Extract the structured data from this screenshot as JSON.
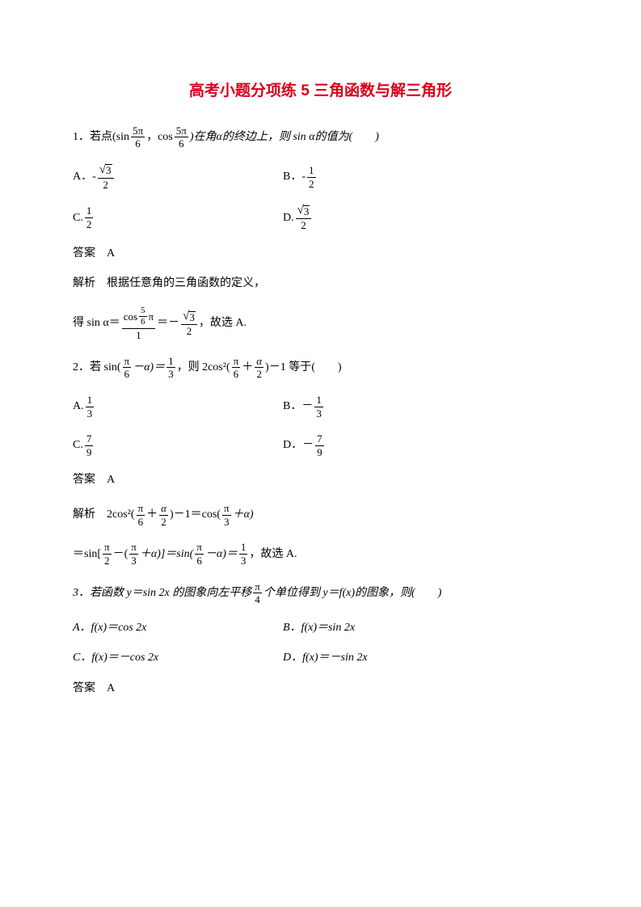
{
  "title_text": "高考小题分项练 5   三角函数与解三角形",
  "title_color": "#d9001b",
  "q1": {
    "stem_prefix": "1．若点(sin ",
    "frac1_num": "5π",
    "frac1_den": "6",
    "stem_mid": "，cos ",
    "frac2_num": "5π",
    "frac2_den": "6",
    "stem_suffix": ")在角α的终边上，则 sin α的值为(　　)",
    "optA_label": "A．-",
    "optA_num": "",
    "optA_den": "2",
    "optA_sqrt": "3",
    "optB_label": "B．-",
    "optB_num": "1",
    "optB_den": "2",
    "optC_label": "C.",
    "optC_num": "1",
    "optC_den": "2",
    "optD_label": "D.",
    "optD_sqrt": "3",
    "optD_den": "2",
    "answer": "答案　A",
    "expl1": "解析　根据任意角的三角函数的定义，",
    "expl2_prefix": "得 sin α＝",
    "expl2_top": "cos ",
    "expl2_top_fracnum": "5",
    "expl2_top_fracden": "6",
    "expl2_top_pi": "π",
    "expl2_bot": "1",
    "expl2_mid": "＝－",
    "expl2_sqrt": "3",
    "expl2_fracden": "2",
    "expl2_suffix": "，故选 A."
  },
  "q2": {
    "stem_prefix": "2．若 sin(",
    "frac1_num": "π",
    "frac1_den": "6",
    "stem_mid1": "－α)＝",
    "frac2_num": "1",
    "frac2_den": "3",
    "stem_mid2": "，则 2cos²(",
    "frac3_num": "π",
    "frac3_den": "6",
    "stem_plus": "＋",
    "frac4_num": "α",
    "frac4_den": "2",
    "stem_suffix": ")－1 等于(　　)",
    "optA_label": "A.",
    "optA_num": "1",
    "optA_den": "3",
    "optB_label": "B．－",
    "optB_num": "1",
    "optB_den": "3",
    "optC_label": "C.",
    "optC_num": "7",
    "optC_den": "9",
    "optD_label": "D．－",
    "optD_num": "7",
    "optD_den": "9",
    "answer": "答案　A",
    "expl1_prefix": "解析　2cos²(",
    "expl1_f1n": "π",
    "expl1_f1d": "6",
    "expl1_mid1": "＋",
    "expl1_f2n": "α",
    "expl1_f2d": "2",
    "expl1_mid2": ")－1＝cos(",
    "expl1_f3n": "π",
    "expl1_f3d": "3",
    "expl1_suffix": "＋α)",
    "expl2_prefix": "＝sin[",
    "expl2_f1n": "π",
    "expl2_f1d": "2",
    "expl2_mid1": "－(",
    "expl2_f2n": "π",
    "expl2_f2d": "3",
    "expl2_mid2": "＋α)]＝sin(",
    "expl2_f3n": "π",
    "expl2_f3d": "6",
    "expl2_mid3": "－α)＝",
    "expl2_f4n": "1",
    "expl2_f4d": "3",
    "expl2_suffix": "，故选 A."
  },
  "q3": {
    "stem_prefix": "3．若函数 y＝sin 2x 的图象向左平移",
    "frac_num": "π",
    "frac_den": "4",
    "stem_suffix": "个单位得到 y＝f(x)的图象，则(　　)",
    "optA": "A．f(x)＝cos 2x",
    "optB": "B．f(x)＝sin 2x",
    "optC": "C．f(x)＝－cos 2x",
    "optD": "D．f(x)＝－sin 2x",
    "answer": "答案　A"
  }
}
